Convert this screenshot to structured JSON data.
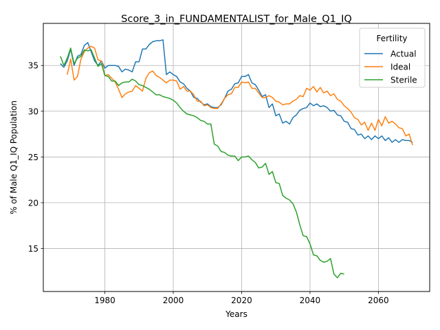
{
  "chart_data": {
    "type": "line",
    "title": "Score_3_in_FUNDAMENTALIST_for_Male_Q1_IQ",
    "xlabel": "Years",
    "ylabel": "% of Male Q1_IQ Population",
    "xlim": [
      1962,
      2075
    ],
    "ylim": [
      10.3,
      39.6
    ],
    "xticks": [
      1980,
      2000,
      2020,
      2040,
      2060
    ],
    "yticks": [
      15,
      20,
      25,
      30,
      35
    ],
    "grid": true,
    "legend": {
      "title": "Fertility",
      "position": "top-right"
    },
    "series": [
      {
        "name": "Actual",
        "color": "#1f77b4",
        "x": [
          1967,
          1968,
          1969,
          1970,
          1971,
          1972,
          1973,
          1974,
          1975,
          1976,
          1977,
          1978,
          1979,
          1980,
          1981,
          1982,
          1983,
          1984,
          1985,
          1986,
          1987,
          1988,
          1989,
          1990,
          1991,
          1992,
          1993,
          1994,
          1995,
          1996,
          1997,
          1998,
          1999,
          2000,
          2001,
          2002,
          2003,
          2004,
          2005,
          2006,
          2007,
          2008,
          2009,
          2010,
          2011,
          2012,
          2013,
          2014,
          2015,
          2016,
          2017,
          2018,
          2019,
          2020,
          2021,
          2022,
          2023,
          2024,
          2025,
          2026,
          2027,
          2028,
          2029,
          2030,
          2031,
          2032,
          2033,
          2034,
          2035,
          2036,
          2037,
          2038,
          2039,
          2040,
          2041,
          2042,
          2043,
          2044,
          2045,
          2046,
          2047,
          2048,
          2049,
          2050,
          2051,
          2052,
          2053,
          2054,
          2055,
          2056,
          2057,
          2058,
          2059,
          2060,
          2061,
          2062,
          2063,
          2064,
          2065,
          2066,
          2067,
          2068,
          2069,
          2070
        ],
        "y": [
          35.2,
          34.8,
          35.5,
          36.8,
          35.0,
          36.0,
          36.2,
          37.2,
          37.5,
          36.5,
          35.5,
          35.0,
          35.5,
          34.7,
          35.0,
          35.0,
          35.0,
          34.9,
          34.3,
          34.6,
          34.5,
          34.3,
          35.4,
          35.4,
          36.8,
          36.8,
          37.3,
          37.6,
          37.7,
          37.7,
          37.8,
          34.0,
          34.3,
          34.0,
          33.8,
          33.2,
          33.0,
          32.5,
          32.2,
          31.5,
          31.4,
          31.0,
          30.7,
          30.8,
          30.5,
          30.4,
          30.4,
          30.7,
          31.4,
          32.2,
          32.4,
          33.0,
          33.1,
          33.8,
          33.8,
          34.0,
          33.1,
          32.9,
          32.3,
          31.6,
          31.8,
          30.4,
          30.8,
          29.5,
          29.7,
          28.7,
          28.9,
          28.6,
          29.3,
          29.6,
          30.1,
          30.3,
          30.4,
          30.9,
          30.6,
          30.8,
          30.5,
          30.6,
          30.4,
          30.0,
          30.1,
          29.6,
          29.5,
          28.9,
          28.8,
          28.1,
          28.0,
          27.4,
          27.5,
          27.0,
          27.3,
          26.9,
          27.3,
          27.0,
          27.3,
          26.8,
          27.1,
          26.6,
          26.9,
          26.6,
          26.9,
          26.8,
          26.8,
          26.6
        ]
      },
      {
        "name": "Ideal",
        "color": "#ff7f0e",
        "x": [
          1967,
          1968,
          1969,
          1970,
          1971,
          1972,
          1973,
          1974,
          1975,
          1976,
          1977,
          1978,
          1979,
          1980,
          1981,
          1982,
          1983,
          1984,
          1985,
          1986,
          1987,
          1988,
          1989,
          1990,
          1991,
          1992,
          1993,
          1994,
          1995,
          1996,
          1997,
          1998,
          1999,
          2000,
          2001,
          2002,
          2003,
          2004,
          2005,
          2006,
          2007,
          2008,
          2009,
          2010,
          2011,
          2012,
          2013,
          2014,
          2015,
          2016,
          2017,
          2018,
          2019,
          2020,
          2021,
          2022,
          2023,
          2024,
          2025,
          2026,
          2027,
          2028,
          2029,
          2030,
          2031,
          2032,
          2033,
          2034,
          2035,
          2036,
          2037,
          2038,
          2039,
          2040,
          2041,
          2042,
          2043,
          2044,
          2045,
          2046,
          2047,
          2048,
          2049,
          2050,
          2051,
          2052,
          2053,
          2054,
          2055,
          2056,
          2057,
          2058,
          2059,
          2060,
          2061,
          2062,
          2063,
          2064,
          2065,
          2066,
          2067,
          2068,
          2069,
          2070
        ],
        "y": [
          null,
          null,
          34.0,
          35.7,
          33.4,
          33.8,
          35.7,
          36.5,
          36.9,
          37.1,
          36.9,
          35.6,
          35.5,
          33.9,
          34.0,
          33.6,
          33.2,
          32.4,
          31.5,
          31.9,
          32.1,
          32.2,
          32.8,
          32.5,
          32.2,
          33.6,
          34.2,
          34.4,
          33.9,
          33.7,
          33.4,
          33.1,
          33.4,
          33.4,
          33.3,
          32.4,
          32.7,
          32.2,
          32.2,
          31.8,
          31.1,
          31.1,
          30.6,
          30.7,
          30.4,
          30.3,
          30.3,
          30.8,
          31.4,
          31.8,
          31.9,
          32.6,
          32.6,
          33.2,
          33.1,
          33.2,
          32.5,
          32.5,
          32.0,
          31.5,
          31.5,
          31.7,
          31.5,
          31.1,
          31.0,
          30.7,
          30.8,
          30.8,
          31.1,
          31.3,
          31.7,
          31.6,
          32.5,
          32.3,
          32.7,
          32.1,
          32.6,
          32.0,
          32.2,
          31.7,
          31.9,
          31.3,
          31.1,
          30.6,
          30.3,
          29.9,
          29.3,
          29.1,
          28.5,
          28.8,
          27.9,
          28.7,
          27.9,
          29.1,
          28.4,
          29.4,
          28.7,
          28.9,
          28.6,
          28.2,
          28.1,
          27.3,
          27.5,
          26.3
        ]
      },
      {
        "name": "Sterile",
        "color": "#2ca02c",
        "x": [
          1967,
          1968,
          1969,
          1970,
          1971,
          1972,
          1973,
          1974,
          1975,
          1976,
          1977,
          1978,
          1979,
          1980,
          1981,
          1982,
          1983,
          1984,
          1985,
          1986,
          1987,
          1988,
          1989,
          1990,
          1991,
          1992,
          1993,
          1994,
          1995,
          1996,
          1997,
          1998,
          1999,
          2000,
          2001,
          2002,
          2003,
          2004,
          2005,
          2006,
          2007,
          2008,
          2009,
          2010,
          2011,
          2012,
          2013,
          2014,
          2015,
          2016,
          2017,
          2018,
          2019,
          2020,
          2021,
          2022,
          2023,
          2024,
          2025,
          2026,
          2027,
          2028,
          2029,
          2030,
          2031,
          2032,
          2033,
          2034,
          2035,
          2036,
          2037,
          2038,
          2039,
          2040,
          2041,
          2042,
          2043,
          2044,
          2045,
          2046,
          2047,
          2048,
          2049,
          2050
        ],
        "y": [
          36.0,
          35.0,
          35.8,
          36.9,
          35.2,
          35.8,
          36.0,
          36.7,
          36.6,
          36.7,
          35.8,
          34.9,
          35.2,
          33.9,
          33.8,
          33.3,
          33.3,
          32.8,
          33.1,
          33.2,
          33.2,
          33.5,
          33.3,
          32.9,
          32.8,
          32.6,
          32.4,
          32.1,
          31.8,
          31.8,
          31.6,
          31.5,
          31.4,
          31.2,
          30.9,
          30.4,
          30.0,
          29.7,
          29.6,
          29.5,
          29.3,
          29.0,
          28.9,
          28.6,
          28.6,
          26.4,
          26.2,
          25.6,
          25.5,
          25.2,
          25.1,
          25.1,
          24.6,
          25.0,
          25.0,
          25.1,
          24.7,
          24.4,
          23.8,
          23.9,
          24.3,
          23.1,
          23.4,
          22.2,
          22.1,
          20.8,
          20.5,
          20.3,
          19.9,
          19.0,
          17.6,
          16.4,
          16.3,
          15.5,
          14.3,
          14.2,
          13.7,
          13.5,
          13.6,
          13.9,
          12.2,
          11.8,
          12.3,
          12.2
        ]
      }
    ]
  }
}
